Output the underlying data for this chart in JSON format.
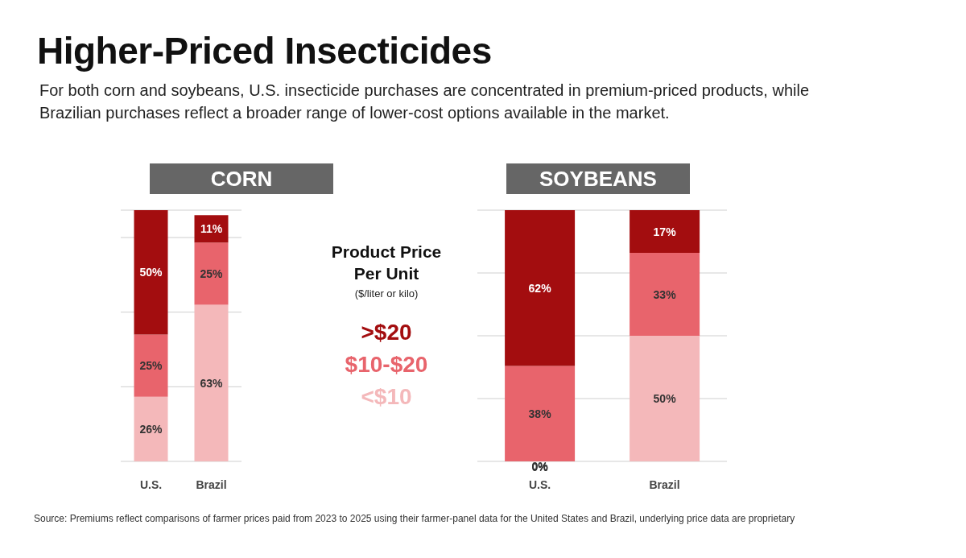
{
  "chart_data": [
    {
      "type": "other",
      "title": "Higher-Priced Insecticides",
      "subtitle": "For both corn and soybeans, U.S. insecticide purchases are concentrated in premium-priced products, while Brazilian purchases reflect a broader range of lower-cost options available in the market.",
      "annotations": [
        "Source: Premiums reflect comparisons of farmer prices paid from 2023 to 2025 using their farmer-panel data for the United States and Brazil, underlying price data are proprietary"
      ]
    },
    {
      "type": "bar",
      "title": "CORN",
      "stacked": true,
      "categories": [
        "U.S.",
        "Brazil"
      ],
      "tick_labels": "x",
      "grid": "y",
      "legend": "right",
      "legend_title": "Product Price Per Unit",
      "annotations": [
        "($/liter or kilo)"
      ],
      "series": [
        {
          "name": "<$10",
          "color": "#f4b8ba",
          "values": [
            26,
            63
          ],
          "value_labels": [
            "26%",
            "63%"
          ]
        },
        {
          "name": "$10-$20",
          "color": "#e8646c",
          "values": [
            25,
            25
          ],
          "value_labels": [
            "25%",
            "25%"
          ]
        },
        {
          "name": ">$20",
          "color": "#a30d0f",
          "values": [
            50,
            11
          ],
          "value_labels": [
            "50%",
            "11%"
          ]
        }
      ]
    },
    {
      "type": "bar",
      "title": "SOYBEANS",
      "stacked": true,
      "categories": [
        "U.S.",
        "Brazil"
      ],
      "tick_labels": "x",
      "grid": "y",
      "series": [
        {
          "color": "#f4b8ba",
          "values": [
            0,
            50
          ],
          "value_labels": [
            "0%",
            "50%"
          ]
        },
        {
          "color": "#e8646c",
          "values": [
            38,
            33
          ],
          "value_labels": [
            "38%",
            "33%"
          ]
        },
        {
          "color": "#a30d0f",
          "values": [
            62,
            17
          ],
          "value_labels": [
            "62%",
            "17%"
          ]
        }
      ]
    }
  ]
}
